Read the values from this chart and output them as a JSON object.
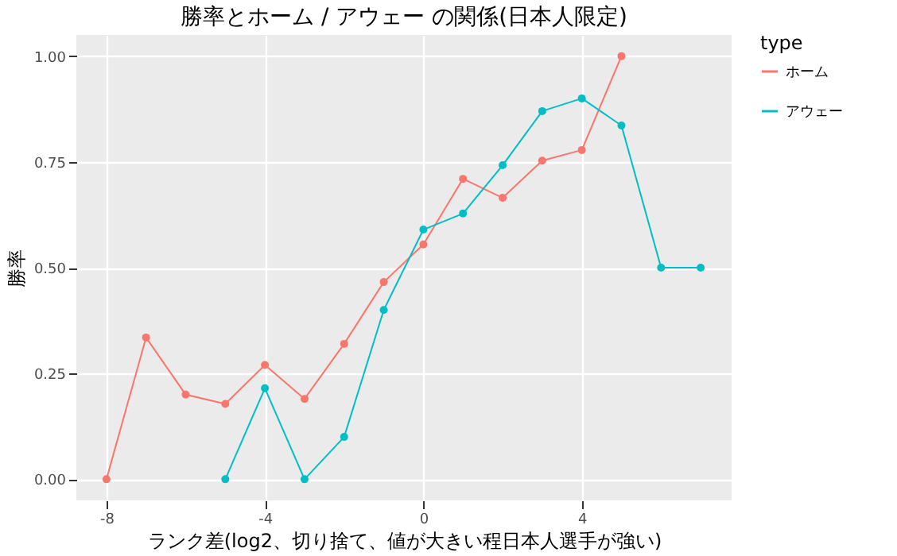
{
  "chart_data": {
    "type": "line",
    "title": "勝率とホーム / アウェー の関係(日本人限定)",
    "xlabel": "ランク差(log2、切り捨て、値が大きい程日本人選手が強い)",
    "ylabel": "勝率",
    "legend_title": "type",
    "x": [
      -8,
      -7,
      -6,
      -5,
      -4,
      -3,
      -2,
      -1,
      0,
      1,
      2,
      3,
      4,
      5
    ],
    "series": [
      {
        "name": "ホーム",
        "color": "#f8766d",
        "values": [
          0,
          0.335,
          0.2,
          0.178,
          0.27,
          0.19,
          0.32,
          0.466,
          0.555,
          0.71,
          0.665,
          0.753,
          0.778,
          1.0
        ]
      },
      {
        "name": "アウェー",
        "color": "#00bfc4",
        "x": [
          -5,
          -4,
          -3,
          -2,
          -1,
          0,
          1,
          2,
          3,
          4,
          5,
          6,
          7
        ],
        "values": [
          0,
          0.215,
          0,
          0.1,
          0.4,
          0.59,
          0.628,
          0.742,
          0.87,
          0.9,
          0.836,
          0.5,
          0.5
        ]
      }
    ],
    "xlim": [
      -8.76,
      7.78
    ],
    "ylim": [
      -0.05,
      1.05
    ],
    "xticks": [
      -8,
      -4,
      0,
      4
    ],
    "yticks": [
      {
        "value": 0,
        "label": "0.00"
      },
      {
        "value": 0.25,
        "label": "0.25"
      },
      {
        "value": 0.5,
        "label": "0.50"
      },
      {
        "value": 0.75,
        "label": "0.75"
      },
      {
        "value": 1,
        "label": "1.00"
      }
    ],
    "grid": true,
    "legend": "right",
    "marker": "circle",
    "line_style": "solid"
  }
}
